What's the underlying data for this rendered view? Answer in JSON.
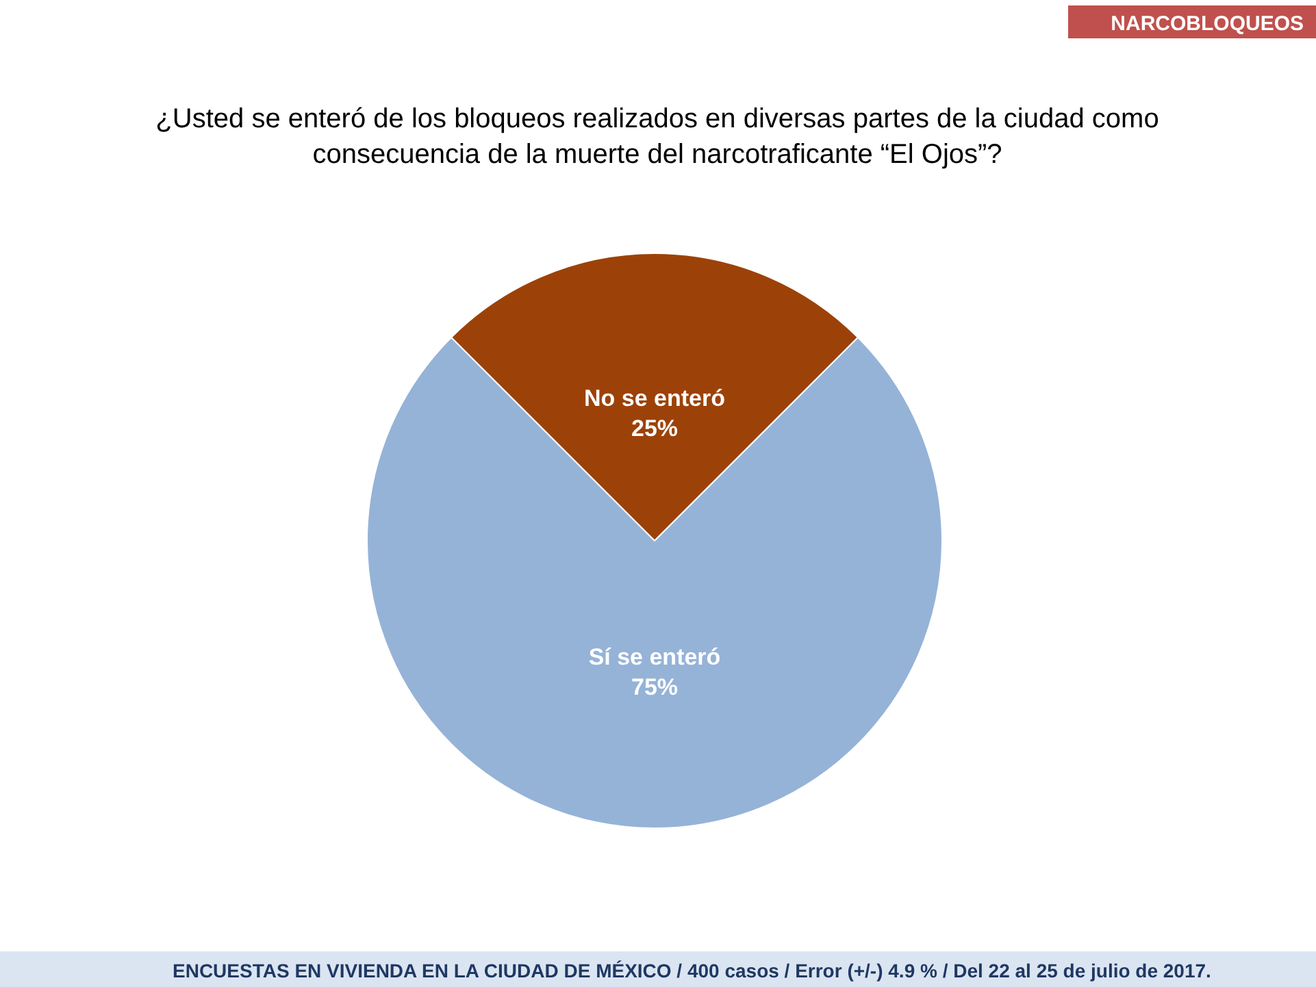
{
  "chart_data": {
    "type": "pie",
    "title": "¿Usted se enteró de los bloqueos realizados en diversas partes de la ciudad como consecuencia de la muerte del narcotraficante “El Ojos”?",
    "categories": [
      "No se enteró",
      "Sí se enteró"
    ],
    "values": [
      25,
      75
    ],
    "colors": [
      "#9c4209",
      "#95b3d7"
    ],
    "value_labels": [
      "25%",
      "75%"
    ],
    "annotations": [
      "NARCOBLOQUEOS",
      "ENCUESTAS EN VIVIENDA EN LA CIUDAD DE MÉXICO / 400 casos / Error (+/-) 4.9 % / Del 22 al 25 de julio de 2017."
    ]
  }
}
